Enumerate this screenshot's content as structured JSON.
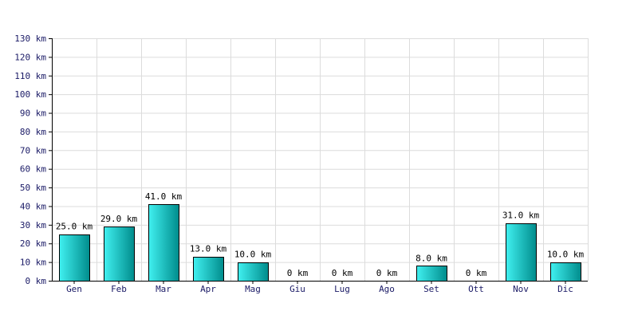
{
  "chart_data": {
    "type": "bar",
    "categories": [
      "Gen",
      "Feb",
      "Mar",
      "Apr",
      "Mag",
      "Giu",
      "Lug",
      "Ago",
      "Set",
      "Ott",
      "Nov",
      "Dic"
    ],
    "values": [
      25,
      29,
      41,
      13,
      10,
      0,
      0,
      0,
      8,
      0,
      31,
      10
    ],
    "data_labels": [
      "25.0 km",
      "29.0 km",
      "41.0 km",
      "13.0 km",
      "10.0 km",
      "0 km",
      "0 km",
      "0 km",
      "8.0 km",
      "0 km",
      "31.0 km",
      "10.0 km"
    ],
    "y_tick_values": [
      0,
      10,
      20,
      30,
      40,
      50,
      60,
      70,
      80,
      90,
      100,
      110,
      120,
      130
    ],
    "y_tick_labels": [
      "0 km",
      "10 km",
      "20 km",
      "30 km",
      "40 km",
      "50 km",
      "60 km",
      "70 km",
      "80 km",
      "90 km",
      "100 km",
      "110 km",
      "120 km",
      "130 km"
    ],
    "ylim": [
      0,
      130
    ],
    "grid": true,
    "title": "",
    "xlabel": "",
    "ylabel": "",
    "colors": {
      "bar_light": "#40f0f0",
      "bar_dark": "#008c8c",
      "bar_outline": "#000000",
      "grid": "#dcdcdc",
      "axis": "#000000"
    }
  }
}
